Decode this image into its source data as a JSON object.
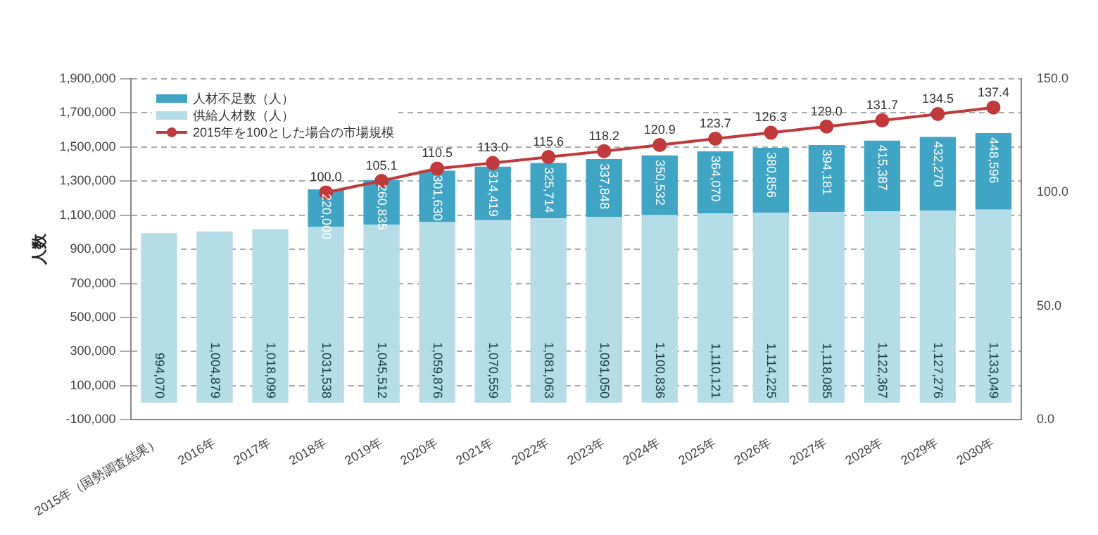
{
  "chart_data": {
    "type": "bar",
    "stacked": true,
    "ylabel": "人数",
    "legend": "top left",
    "grid": "y",
    "marker": "circle",
    "line_style": "solid",
    "categories": [
      "2015年（国勢調査結果）",
      "2016年",
      "2017年",
      "2018年",
      "2019年",
      "2020年",
      "2021年",
      "2022年",
      "2023年",
      "2024年",
      "2025年",
      "2026年",
      "2027年",
      "2028年",
      "2029年",
      "2030年"
    ],
    "ylim": [
      -100000,
      1900000
    ],
    "yticks": [
      {
        "value": -100000,
        "label": "-100,000"
      },
      {
        "value": 100000,
        "label": "100,000"
      },
      {
        "value": 300000,
        "label": "300,000"
      },
      {
        "value": 500000,
        "label": "500,000"
      },
      {
        "value": 700000,
        "label": "700,000"
      },
      {
        "value": 900000,
        "label": "900,000"
      },
      {
        "value": 1100000,
        "label": "1,100,000"
      },
      {
        "value": 1300000,
        "label": "1,300,000"
      },
      {
        "value": 1500000,
        "label": "1,500,000"
      },
      {
        "value": 1700000,
        "label": "1,700,000"
      },
      {
        "value": 1900000,
        "label": "1,900,000"
      }
    ],
    "y2lim": [
      0,
      150
    ],
    "y2ticks": [
      {
        "value": 0,
        "label": "0.0"
      },
      {
        "value": 50,
        "label": "50.0"
      },
      {
        "value": 100,
        "label": "100.0"
      },
      {
        "value": 150,
        "label": "150.0"
      }
    ],
    "series": [
      {
        "name": "供給人材数（人）",
        "color": "#b4dde8",
        "values": [
          994070,
          1004879,
          1018099,
          1031538,
          1045512,
          1059876,
          1070559,
          1081063,
          1091050,
          1100836,
          1110121,
          1114225,
          1118085,
          1122367,
          1127276,
          1133049
        ],
        "value_labels": [
          "994,070",
          "1,004,879",
          "1,018,099",
          "1,031,538",
          "1,045,512",
          "1,059,876",
          "1,070,559",
          "1,081,063",
          "1,091,050",
          "1,100,836",
          "1,110,121",
          "1,114,225",
          "1,118,085",
          "1,122,367",
          "1,127,276",
          "1,133,049"
        ]
      },
      {
        "name": "人材不足数（人）",
        "color": "#40a4c4",
        "values": [
          null,
          null,
          null,
          220000,
          260835,
          301630,
          314419,
          325714,
          337848,
          350532,
          364070,
          380856,
          394181,
          415387,
          432270,
          448596
        ],
        "value_labels": [
          null,
          null,
          null,
          "220,000",
          "260,835",
          "301,630",
          "314,419",
          "325,714",
          "337,848",
          "350,532",
          "364,070",
          "380,856",
          "394,181",
          "415,387",
          "432,270",
          "448,596"
        ]
      },
      {
        "name": "2015年を100とした場合の市場規模",
        "type": "line",
        "axis": "y2",
        "color": "#c0393b",
        "values": [
          null,
          null,
          null,
          100.0,
          105.1,
          110.5,
          113.0,
          115.6,
          118.2,
          120.9,
          123.7,
          126.3,
          129.0,
          131.7,
          134.5,
          137.4
        ],
        "value_labels": [
          null,
          null,
          null,
          "100.0",
          "105.1",
          "110.5",
          "113.0",
          "115.6",
          "118.2",
          "120.9",
          "123.7",
          "126.3",
          "129.0",
          "131.7",
          "134.5",
          "137.4"
        ]
      }
    ]
  }
}
